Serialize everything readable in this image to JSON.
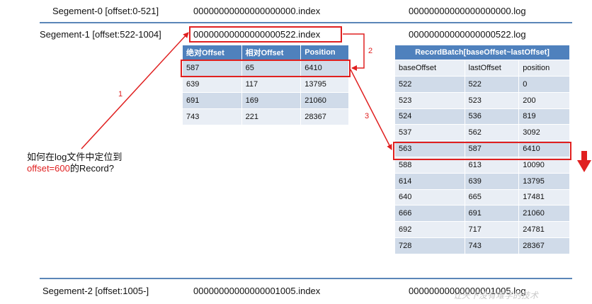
{
  "segments": [
    {
      "label": "Segement-0 [offset:0-521]",
      "index_file": "00000000000000000000.index",
      "log_file": "00000000000000000000.log"
    },
    {
      "label": "Segement-1 [offset:522-1004]",
      "index_file": "00000000000000000522.index",
      "log_file": "00000000000000000522.log"
    },
    {
      "label": "Segement-2 [offset:1005-]",
      "index_file": "00000000000000001005.index",
      "log_file": "00000000000000001005.log"
    }
  ],
  "index_table": {
    "headers": [
      "绝对Offset",
      "相对Offset",
      "Position"
    ],
    "rows": [
      [
        "587",
        "65",
        "6410"
      ],
      [
        "639",
        "117",
        "13795"
      ],
      [
        "691",
        "169",
        "21060"
      ],
      [
        "743",
        "221",
        "28367"
      ]
    ]
  },
  "log_table": {
    "title": "RecordBatch[baseOffset~lastOffset]",
    "headers": [
      "baseOffset",
      "lastOffset",
      "position"
    ],
    "rows": [
      [
        "522",
        "522",
        "0"
      ],
      [
        "523",
        "523",
        "200"
      ],
      [
        "524",
        "536",
        "819"
      ],
      [
        "537",
        "562",
        "3092"
      ],
      [
        "563",
        "587",
        "6410"
      ],
      [
        "588",
        "613",
        "10090"
      ],
      [
        "614",
        "639",
        "13795"
      ],
      [
        "640",
        "665",
        "17481"
      ],
      [
        "666",
        "691",
        "21060"
      ],
      [
        "692",
        "717",
        "24781"
      ],
      [
        "728",
        "743",
        "28367"
      ]
    ]
  },
  "question": {
    "line1": "如何在log文件中定位到",
    "line2_red": "offset=600",
    "line2_rest": "的Record?"
  },
  "step_labels": [
    "1",
    "2",
    "3"
  ],
  "watermark": "让天下没有难学的技术",
  "colors": {
    "accent_red": "#e02020",
    "header_blue": "#4f81bd",
    "row_light": "#e9eef5",
    "row_dark": "#d0dbe9"
  }
}
